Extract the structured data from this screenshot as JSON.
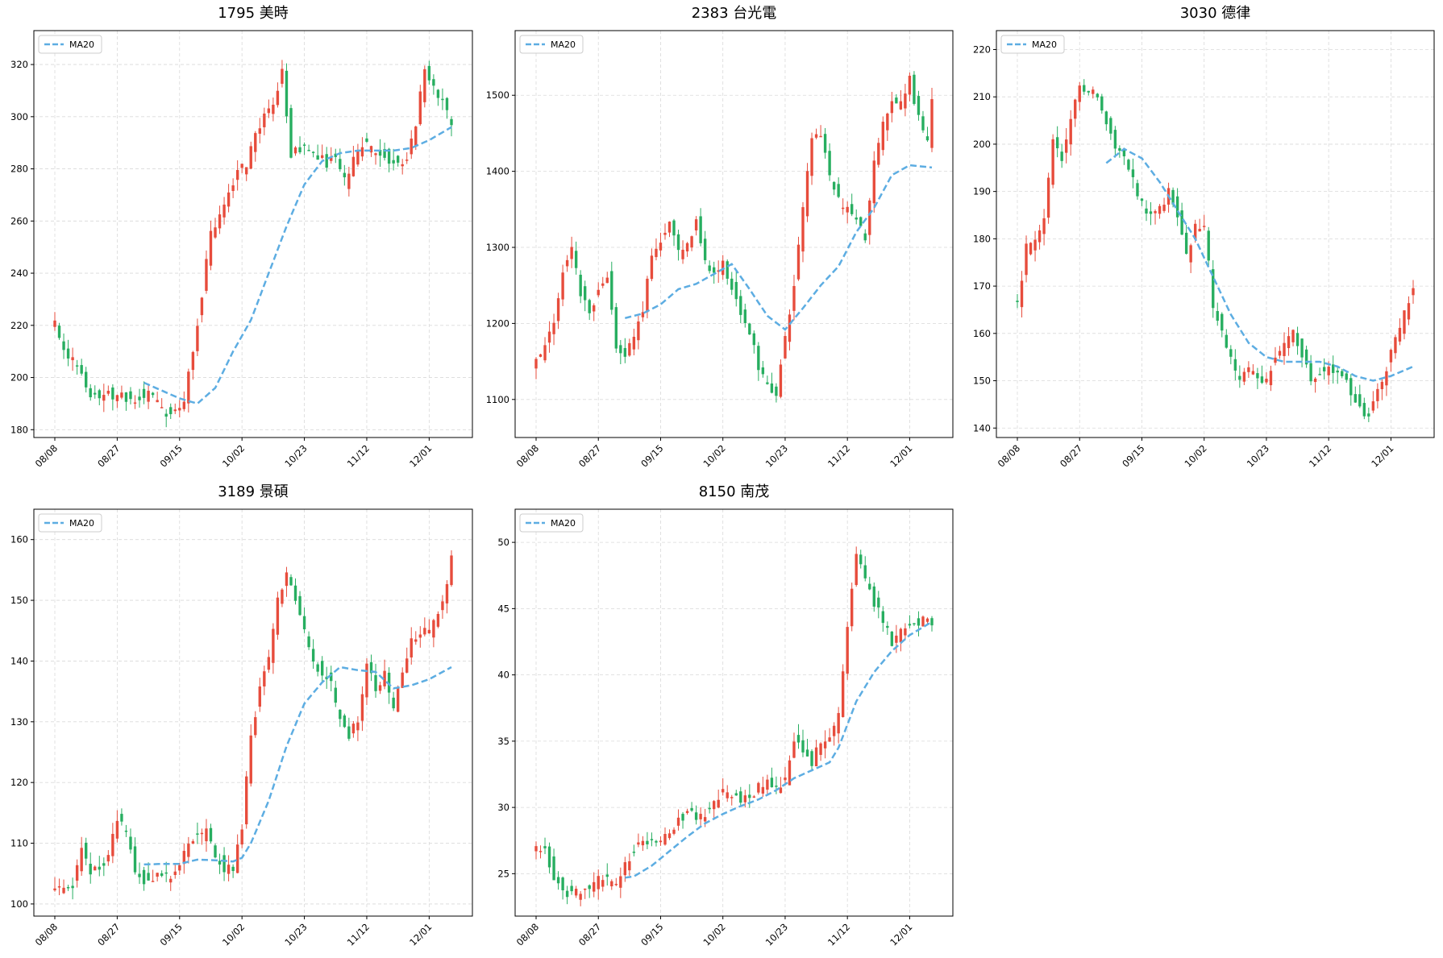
{
  "style": {
    "up_color": "#e74c3c",
    "down_color": "#27ae60",
    "ma_color": "#5dade2",
    "grid_color": "#d9d9d9"
  },
  "chart_data": [
    {
      "type": "candlestick",
      "title": "1795 美時",
      "legend": {
        "label": "MA20",
        "position": "top-left"
      },
      "grid": true,
      "ylim": [
        177,
        333
      ],
      "yticks": [
        180,
        200,
        220,
        240,
        260,
        280,
        300,
        320
      ],
      "xticks": [
        "08/08",
        "08/27",
        "09/15",
        "10/02",
        "10/23",
        "11/12",
        "12/01"
      ],
      "xtick_index": [
        0,
        14,
        28,
        42,
        56,
        70,
        84
      ],
      "n_days": 90,
      "close_anchors": [
        [
          0,
          221
        ],
        [
          1,
          214
        ],
        [
          3,
          209
        ],
        [
          5,
          205
        ],
        [
          7,
          195
        ],
        [
          9,
          193
        ],
        [
          11,
          194
        ],
        [
          13,
          193
        ],
        [
          15,
          194
        ],
        [
          17,
          191
        ],
        [
          19,
          193
        ],
        [
          21,
          193
        ],
        [
          23,
          191
        ],
        [
          25,
          186
        ],
        [
          27,
          187
        ],
        [
          29,
          190
        ],
        [
          31,
          211
        ],
        [
          33,
          232
        ],
        [
          35,
          255
        ],
        [
          37,
          262
        ],
        [
          39,
          270
        ],
        [
          41,
          278
        ],
        [
          43,
          282
        ],
        [
          45,
          292
        ],
        [
          47,
          300
        ],
        [
          49,
          304
        ],
        [
          51,
          318
        ],
        [
          53,
          285
        ],
        [
          55,
          288
        ],
        [
          57,
          288
        ],
        [
          59,
          285
        ],
        [
          61,
          282
        ],
        [
          63,
          285
        ],
        [
          65,
          275
        ],
        [
          67,
          283
        ],
        [
          69,
          289
        ],
        [
          71,
          288
        ],
        [
          73,
          287
        ],
        [
          75,
          283
        ],
        [
          77,
          282
        ],
        [
          79,
          285
        ],
        [
          81,
          298
        ],
        [
          83,
          318
        ],
        [
          85,
          313
        ],
        [
          87,
          305
        ],
        [
          89,
          297
        ]
      ],
      "ma_anchors": [
        [
          20,
          198
        ],
        [
          24,
          195
        ],
        [
          28,
          192
        ],
        [
          32,
          190
        ],
        [
          36,
          196
        ],
        [
          40,
          210
        ],
        [
          44,
          222
        ],
        [
          48,
          240
        ],
        [
          52,
          258
        ],
        [
          56,
          274
        ],
        [
          60,
          283
        ],
        [
          64,
          286
        ],
        [
          68,
          287
        ],
        [
          72,
          287
        ],
        [
          76,
          287
        ],
        [
          80,
          288
        ],
        [
          84,
          291
        ],
        [
          89,
          296
        ]
      ]
    },
    {
      "type": "candlestick",
      "title": "2383 台光電",
      "legend": {
        "label": "MA20",
        "position": "top-left"
      },
      "grid": true,
      "ylim": [
        1050,
        1585
      ],
      "yticks": [
        1100,
        1200,
        1300,
        1400,
        1500
      ],
      "xticks": [
        "08/08",
        "08/27",
        "09/15",
        "10/02",
        "10/23",
        "11/12",
        "12/01"
      ],
      "xtick_index": [
        0,
        14,
        28,
        42,
        56,
        70,
        84
      ],
      "n_days": 90,
      "close_anchors": [
        [
          0,
          1150
        ],
        [
          2,
          1170
        ],
        [
          4,
          1200
        ],
        [
          6,
          1270
        ],
        [
          8,
          1300
        ],
        [
          10,
          1240
        ],
        [
          12,
          1210
        ],
        [
          14,
          1250
        ],
        [
          16,
          1260
        ],
        [
          18,
          1170
        ],
        [
          20,
          1160
        ],
        [
          22,
          1180
        ],
        [
          24,
          1220
        ],
        [
          26,
          1290
        ],
        [
          28,
          1310
        ],
        [
          30,
          1330
        ],
        [
          32,
          1290
        ],
        [
          34,
          1300
        ],
        [
          36,
          1340
        ],
        [
          38,
          1280
        ],
        [
          40,
          1260
        ],
        [
          42,
          1280
        ],
        [
          44,
          1250
        ],
        [
          46,
          1210
        ],
        [
          48,
          1190
        ],
        [
          50,
          1140
        ],
        [
          52,
          1120
        ],
        [
          54,
          1110
        ],
        [
          56,
          1180
        ],
        [
          58,
          1250
        ],
        [
          60,
          1350
        ],
        [
          62,
          1440
        ],
        [
          64,
          1450
        ],
        [
          66,
          1390
        ],
        [
          68,
          1360
        ],
        [
          70,
          1350
        ],
        [
          72,
          1340
        ],
        [
          74,
          1310
        ],
        [
          76,
          1410
        ],
        [
          78,
          1460
        ],
        [
          80,
          1490
        ],
        [
          82,
          1490
        ],
        [
          84,
          1520
        ],
        [
          86,
          1470
        ],
        [
          88,
          1440
        ],
        [
          89,
          1490
        ]
      ],
      "ma_anchors": [
        [
          20,
          1207
        ],
        [
          24,
          1213
        ],
        [
          28,
          1225
        ],
        [
          32,
          1245
        ],
        [
          36,
          1252
        ],
        [
          40,
          1265
        ],
        [
          44,
          1278
        ],
        [
          48,
          1245
        ],
        [
          52,
          1210
        ],
        [
          56,
          1192
        ],
        [
          60,
          1220
        ],
        [
          64,
          1250
        ],
        [
          68,
          1275
        ],
        [
          72,
          1320
        ],
        [
          76,
          1352
        ],
        [
          80,
          1395
        ],
        [
          84,
          1408
        ],
        [
          89,
          1405
        ]
      ]
    },
    {
      "type": "candlestick",
      "title": "3030 德律",
      "legend": {
        "label": "MA20",
        "position": "top-left"
      },
      "grid": true,
      "ylim": [
        138,
        224
      ],
      "yticks": [
        140,
        150,
        160,
        170,
        180,
        190,
        200,
        210,
        220
      ],
      "xticks": [
        "08/08",
        "08/27",
        "09/15",
        "10/02",
        "10/23",
        "11/12",
        "12/01"
      ],
      "xtick_index": [
        0,
        14,
        28,
        42,
        56,
        70,
        84
      ],
      "n_days": 90,
      "close_anchors": [
        [
          0,
          166
        ],
        [
          2,
          178
        ],
        [
          4,
          180
        ],
        [
          6,
          184
        ],
        [
          8,
          200
        ],
        [
          10,
          197
        ],
        [
          12,
          205
        ],
        [
          14,
          212
        ],
        [
          16,
          212
        ],
        [
          18,
          210
        ],
        [
          20,
          205
        ],
        [
          22,
          199
        ],
        [
          24,
          197
        ],
        [
          26,
          193
        ],
        [
          28,
          187
        ],
        [
          30,
          185
        ],
        [
          32,
          186
        ],
        [
          34,
          190
        ],
        [
          36,
          185
        ],
        [
          38,
          176
        ],
        [
          40,
          183
        ],
        [
          42,
          183
        ],
        [
          44,
          166
        ],
        [
          46,
          160
        ],
        [
          48,
          155
        ],
        [
          50,
          150
        ],
        [
          52,
          152
        ],
        [
          54,
          151
        ],
        [
          56,
          150
        ],
        [
          58,
          155
        ],
        [
          60,
          158
        ],
        [
          62,
          160
        ],
        [
          64,
          156
        ],
        [
          66,
          150
        ],
        [
          68,
          152
        ],
        [
          70,
          153
        ],
        [
          72,
          152
        ],
        [
          74,
          150
        ],
        [
          76,
          146
        ],
        [
          78,
          142
        ],
        [
          80,
          145
        ],
        [
          82,
          150
        ],
        [
          84,
          156
        ],
        [
          86,
          161
        ],
        [
          88,
          167
        ],
        [
          89,
          170
        ]
      ],
      "ma_anchors": [
        [
          20,
          196
        ],
        [
          24,
          199
        ],
        [
          28,
          197
        ],
        [
          32,
          192
        ],
        [
          36,
          186
        ],
        [
          40,
          180
        ],
        [
          44,
          172
        ],
        [
          48,
          164
        ],
        [
          52,
          158
        ],
        [
          56,
          155
        ],
        [
          60,
          154
        ],
        [
          64,
          154
        ],
        [
          68,
          154
        ],
        [
          72,
          153
        ],
        [
          76,
          151
        ],
        [
          80,
          150
        ],
        [
          84,
          151
        ],
        [
          89,
          153
        ]
      ]
    },
    {
      "type": "candlestick",
      "title": "3189 景碩",
      "legend": {
        "label": "MA20",
        "position": "top-left"
      },
      "grid": true,
      "ylim": [
        98,
        165
      ],
      "yticks": [
        100,
        110,
        120,
        130,
        140,
        150,
        160
      ],
      "xticks": [
        "08/08",
        "08/27",
        "09/15",
        "10/02",
        "10/23",
        "11/12",
        "12/01"
      ],
      "xtick_index": [
        0,
        14,
        28,
        42,
        56,
        70,
        84
      ],
      "n_days": 90,
      "close_anchors": [
        [
          0,
          102
        ],
        [
          2,
          103
        ],
        [
          4,
          103
        ],
        [
          6,
          110
        ],
        [
          8,
          105
        ],
        [
          10,
          106
        ],
        [
          12,
          108
        ],
        [
          14,
          114
        ],
        [
          16,
          112
        ],
        [
          18,
          105
        ],
        [
          20,
          104
        ],
        [
          22,
          104
        ],
        [
          24,
          105
        ],
        [
          26,
          104
        ],
        [
          28,
          106
        ],
        [
          30,
          110
        ],
        [
          32,
          111
        ],
        [
          34,
          112
        ],
        [
          36,
          108
        ],
        [
          38,
          106
        ],
        [
          40,
          106
        ],
        [
          42,
          113
        ],
        [
          44,
          128
        ],
        [
          46,
          135
        ],
        [
          48,
          140
        ],
        [
          50,
          150
        ],
        [
          52,
          155
        ],
        [
          54,
          150
        ],
        [
          56,
          145
        ],
        [
          58,
          140
        ],
        [
          60,
          138
        ],
        [
          62,
          136
        ],
        [
          64,
          130
        ],
        [
          66,
          128
        ],
        [
          68,
          130
        ],
        [
          70,
          140
        ],
        [
          72,
          135
        ],
        [
          74,
          138
        ],
        [
          76,
          132
        ],
        [
          78,
          138
        ],
        [
          80,
          143
        ],
        [
          82,
          145
        ],
        [
          84,
          145
        ],
        [
          86,
          148
        ],
        [
          88,
          152
        ],
        [
          89,
          157
        ]
      ],
      "ma_anchors": [
        [
          20,
          106.5
        ],
        [
          24,
          106.6
        ],
        [
          28,
          106.6
        ],
        [
          32,
          107.3
        ],
        [
          36,
          107.2
        ],
        [
          40,
          107.0
        ],
        [
          42,
          107.6
        ],
        [
          44,
          110
        ],
        [
          48,
          117
        ],
        [
          52,
          126
        ],
        [
          56,
          133
        ],
        [
          60,
          136.5
        ],
        [
          64,
          139
        ],
        [
          68,
          138.5
        ],
        [
          72,
          138.2
        ],
        [
          76,
          135.5
        ],
        [
          80,
          136
        ],
        [
          84,
          137
        ],
        [
          89,
          139
        ]
      ]
    },
    {
      "type": "candlestick",
      "title": "8150 南茂",
      "legend": {
        "label": "MA20",
        "position": "top-left"
      },
      "grid": true,
      "ylim": [
        21.8,
        52.5
      ],
      "yticks": [
        25,
        30,
        35,
        40,
        45,
        50
      ],
      "xticks": [
        "08/08",
        "08/27",
        "09/15",
        "10/02",
        "10/23",
        "11/12",
        "12/01"
      ],
      "xtick_index": [
        0,
        14,
        28,
        42,
        56,
        70,
        84
      ],
      "n_days": 90,
      "close_anchors": [
        [
          0,
          26.8
        ],
        [
          2,
          26.8
        ],
        [
          4,
          24.8
        ],
        [
          6,
          23.8
        ],
        [
          8,
          23.4
        ],
        [
          10,
          23.6
        ],
        [
          12,
          23.9
        ],
        [
          14,
          24.5
        ],
        [
          16,
          24.4
        ],
        [
          18,
          24.0
        ],
        [
          20,
          25.5
        ],
        [
          22,
          26.8
        ],
        [
          24,
          27.2
        ],
        [
          26,
          27.4
        ],
        [
          28,
          27.5
        ],
        [
          30,
          28.2
        ],
        [
          32,
          29.0
        ],
        [
          34,
          29.6
        ],
        [
          36,
          29.2
        ],
        [
          38,
          29.5
        ],
        [
          40,
          30.3
        ],
        [
          42,
          31.2
        ],
        [
          44,
          30.8
        ],
        [
          46,
          30.6
        ],
        [
          48,
          30.9
        ],
        [
          50,
          31.5
        ],
        [
          52,
          32.0
        ],
        [
          54,
          31.5
        ],
        [
          56,
          32.2
        ],
        [
          58,
          35.0
        ],
        [
          60,
          34.5
        ],
        [
          62,
          33.5
        ],
        [
          64,
          34.8
        ],
        [
          66,
          35.2
        ],
        [
          68,
          37.0
        ],
        [
          70,
          44.0
        ],
        [
          72,
          49.0
        ],
        [
          74,
          47.0
        ],
        [
          76,
          45.5
        ],
        [
          78,
          44.0
        ],
        [
          80,
          42.5
        ],
        [
          82,
          43.2
        ],
        [
          84,
          43.8
        ],
        [
          86,
          44.0
        ],
        [
          88,
          44.2
        ],
        [
          89,
          44.0
        ]
      ],
      "ma_anchors": [
        [
          20,
          24.7
        ],
        [
          22,
          24.8
        ],
        [
          26,
          25.6
        ],
        [
          30,
          26.7
        ],
        [
          34,
          27.8
        ],
        [
          38,
          28.8
        ],
        [
          42,
          29.5
        ],
        [
          46,
          30.1
        ],
        [
          50,
          30.6
        ],
        [
          54,
          31.3
        ],
        [
          58,
          32.2
        ],
        [
          62,
          32.8
        ],
        [
          66,
          33.4
        ],
        [
          68,
          34.5
        ],
        [
          72,
          38.0
        ],
        [
          76,
          40.2
        ],
        [
          80,
          41.8
        ],
        [
          84,
          43.0
        ],
        [
          89,
          44.0
        ]
      ]
    }
  ]
}
